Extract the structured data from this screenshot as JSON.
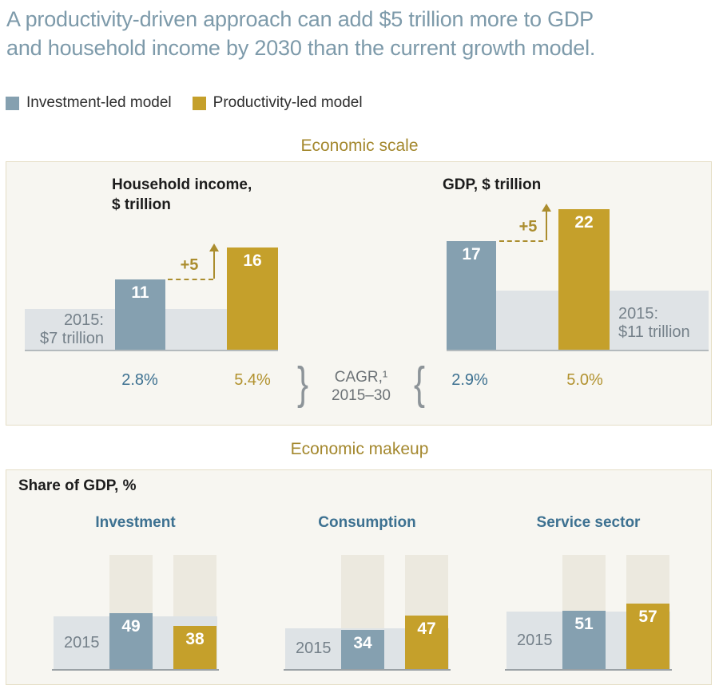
{
  "title": {
    "line1": "A productivity-driven approach can add $5 trillion more to GDP",
    "line2": "and household income by 2030 than the current growth model."
  },
  "legend": {
    "items": [
      {
        "label": "Investment-led model",
        "color": "#85a0b0"
      },
      {
        "label": "Productivity-led model",
        "color": "#c5a02b"
      }
    ]
  },
  "colors": {
    "title_text": "#7d9aaa",
    "investment_led_bar": "#85a0b0",
    "productivity_led_bar": "#c5a02b",
    "gold_text": "#ab8d2e",
    "blue_text": "#3d7191",
    "band_2015": "#dfe3e6",
    "background_column": "#ece9df",
    "panel_background": "#f7f6f1",
    "panel_border": "#e5dec6",
    "muted_text": "#75818a"
  },
  "chart_data": [
    {
      "type": "bar",
      "title": "Economic scale",
      "unit": "$ trillion",
      "panels": [
        {
          "label_line1": "Household income,",
          "label_line2": "$ trillion",
          "base_year_label_line1": "2015:",
          "base_year_label_line2": "$7 trillion",
          "base_2015": 7,
          "investment_led": 11,
          "productivity_led": 16,
          "delta": "+5",
          "cagr_investment": "2.8%",
          "cagr_productivity": "5.4%"
        },
        {
          "label_line1": "GDP, $ trillion",
          "label_line2": "",
          "base_year_label_line1": "2015:",
          "base_year_label_line2": "$11 trillion",
          "base_2015": 11,
          "investment_led": 17,
          "productivity_led": 22,
          "delta": "+5",
          "cagr_investment": "2.9%",
          "cagr_productivity": "5.0%"
        }
      ],
      "cagr_note_line1": "CAGR,¹",
      "cagr_note_line2": "2015–30",
      "brace_left": "}",
      "brace_right": "{"
    },
    {
      "type": "bar",
      "title": "Economic makeup",
      "ylabel": "Share of GDP, %",
      "ylim": [
        0,
        100
      ],
      "band_label": "2015",
      "categories": [
        "Investment",
        "Consumption",
        "Service sector"
      ],
      "series": [
        {
          "name": "2015 level (est. from band height)",
          "values": [
            46,
            36,
            50
          ]
        },
        {
          "name": "Investment-led model",
          "values": [
            49,
            34,
            51
          ]
        },
        {
          "name": "Productivity-led model",
          "values": [
            38,
            47,
            57
          ]
        }
      ]
    }
  ]
}
